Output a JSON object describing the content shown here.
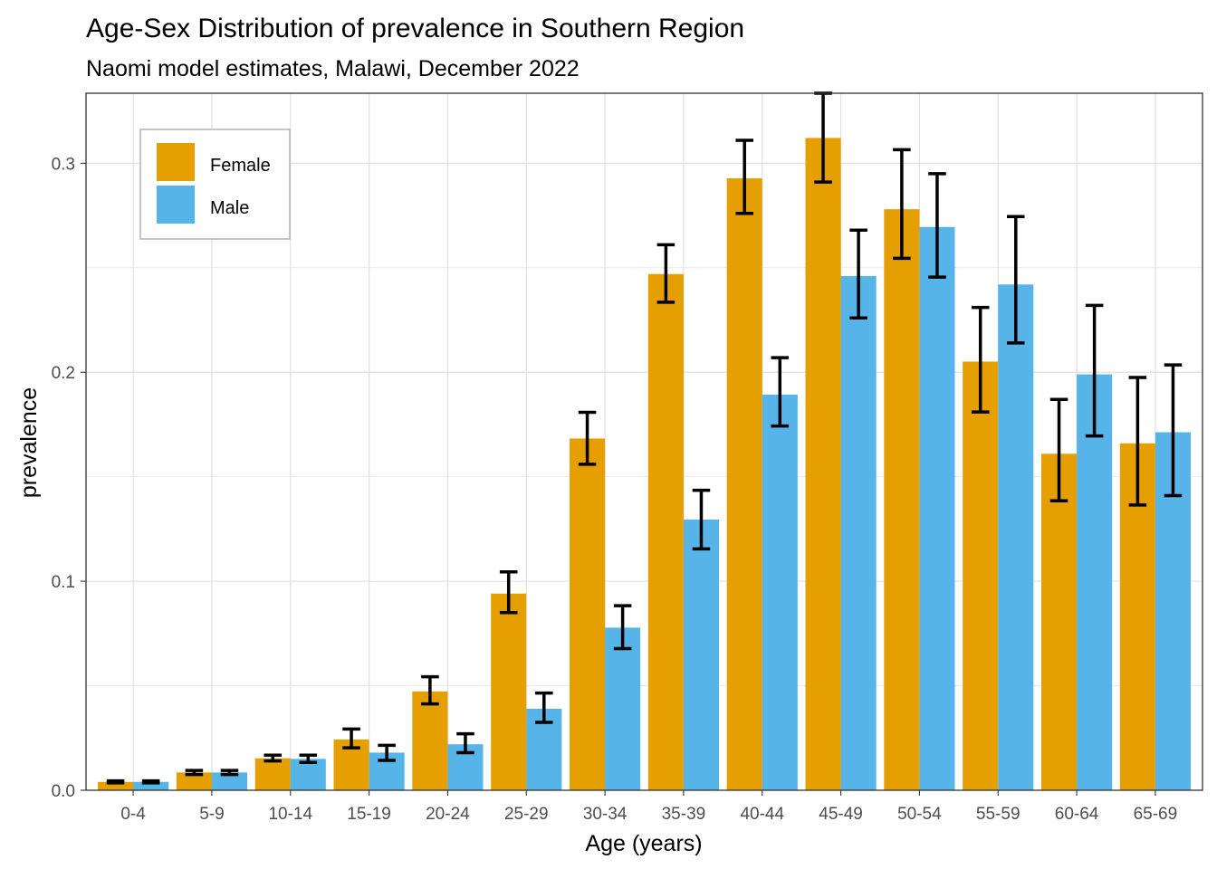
{
  "chart_data": {
    "type": "bar",
    "title": "Age-Sex Distribution of prevalence in Southern Region",
    "subtitle": "Naomi model estimates, Malawi, December 2022",
    "xlabel": "Age (years)",
    "ylabel": "prevalence",
    "ylim": [
      0,
      0.3335
    ],
    "yticks": [
      0.0,
      0.1,
      0.2,
      0.3
    ],
    "ytick_labels": [
      "0.0",
      "0.1",
      "0.2",
      "0.3"
    ],
    "grid": true,
    "legend_position": "top-left",
    "categories": [
      "0-4",
      "5-9",
      "10-14",
      "15-19",
      "20-24",
      "25-29",
      "30-34",
      "35-39",
      "40-44",
      "45-49",
      "50-54",
      "55-59",
      "60-64",
      "65-69"
    ],
    "series": [
      {
        "name": "Female",
        "color": "#E69F00",
        "values": [
          0.004,
          0.0085,
          0.0153,
          0.0243,
          0.0473,
          0.0941,
          0.1683,
          0.247,
          0.2928,
          0.3121,
          0.278,
          0.2051,
          0.161,
          0.166
        ],
        "lower": [
          0.0035,
          0.0075,
          0.014,
          0.0203,
          0.0413,
          0.085,
          0.156,
          0.2335,
          0.276,
          0.291,
          0.2545,
          0.181,
          0.1385,
          0.1365
        ],
        "upper": [
          0.0045,
          0.0095,
          0.0168,
          0.0293,
          0.0543,
          0.1045,
          0.1808,
          0.261,
          0.311,
          0.3335,
          0.3065,
          0.231,
          0.187,
          0.1975
        ]
      },
      {
        "name": "Male",
        "color": "#56B4E9",
        "values": [
          0.004,
          0.0085,
          0.015,
          0.018,
          0.022,
          0.039,
          0.0778,
          0.1295,
          0.1893,
          0.246,
          0.2695,
          0.242,
          0.199,
          0.1713
        ],
        "lower": [
          0.0035,
          0.0075,
          0.0133,
          0.0143,
          0.018,
          0.0325,
          0.0678,
          0.1155,
          0.1743,
          0.226,
          0.2455,
          0.214,
          0.1695,
          0.141
        ],
        "upper": [
          0.0045,
          0.0095,
          0.0168,
          0.0215,
          0.027,
          0.0465,
          0.0883,
          0.1435,
          0.207,
          0.268,
          0.295,
          0.2745,
          0.232,
          0.2035
        ]
      }
    ]
  }
}
